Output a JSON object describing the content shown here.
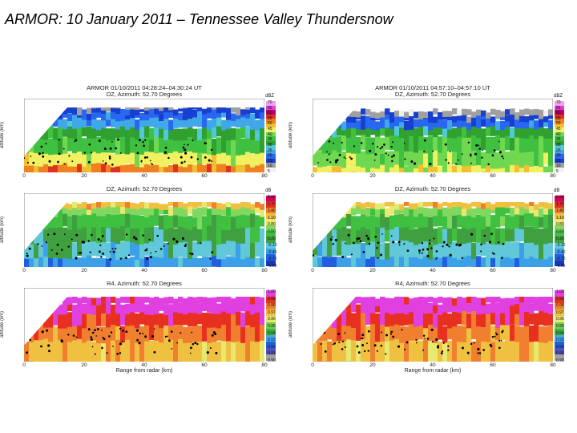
{
  "slide_title": "ARMOR:  10 January 2011 – Tennessee Valley Thundersnow",
  "times": [
    "ARMOR 01/10/2011 04:28:24–04:30:24 UT",
    "ARMOR 01/10/2011 04:57:10–04:57:10 UT"
  ],
  "rows": [
    {
      "key": "dz",
      "title": "DZ, Azimuth: 52.70 Degrees",
      "ylabel": "altitude (km)",
      "unit": "dBZ",
      "levels": [
        "70",
        "65",
        "60",
        "55",
        "50",
        "45",
        "40",
        "35",
        "30",
        "25",
        "20",
        "15",
        "10",
        "5"
      ]
    },
    {
      "key": "zdr",
      "title": "DZ, Azimuth: 52.70 Degrees",
      "ylabel": "altitude (km)",
      "unit": "dB",
      "levels": [
        "2.00",
        "1.70",
        "1.40",
        "1.10",
        "0.80",
        "0.50",
        "0.20",
        "-0.10",
        "-0.40",
        "-0.70",
        "-1.00"
      ]
    },
    {
      "key": "rho",
      "title": "R4, Azimuth: 52.70 Degrees",
      "ylabel": "altitude (km)",
      "unit": "",
      "levels": [
        "1.00",
        "0.99",
        "0.98",
        "0.97",
        "0.96",
        "0.95",
        "0.94",
        "0.93",
        "0.92",
        "0.91",
        "0.90"
      ]
    }
  ],
  "x_ticks": [
    "0",
    "20",
    "40",
    "60",
    "80"
  ],
  "x_label": "Range from radar (km)",
  "colors": {
    "dz": [
      "#f0f0f0",
      "#a0a0a0",
      "#1840d0",
      "#2868f0",
      "#40a8e8",
      "#50c8d8",
      "#30a030",
      "#40c040",
      "#70d850",
      "#f0f060",
      "#f0c030",
      "#f08020",
      "#e03020",
      "#c00060",
      "#e040e0",
      "#f0a0f0"
    ],
    "zdr": [
      "#1838b8",
      "#2060e0",
      "#3ca0e8",
      "#60c8d8",
      "#40a040",
      "#40c040",
      "#80d860",
      "#e8e870",
      "#f0c040",
      "#f08030",
      "#e03020",
      "#d00060"
    ],
    "rho": [
      "#a0a0a0",
      "#5050c0",
      "#2060e0",
      "#40a8e8",
      "#40b040",
      "#70d050",
      "#e8e870",
      "#f0c040",
      "#f08030",
      "#e83020",
      "#e040e0"
    ]
  }
}
